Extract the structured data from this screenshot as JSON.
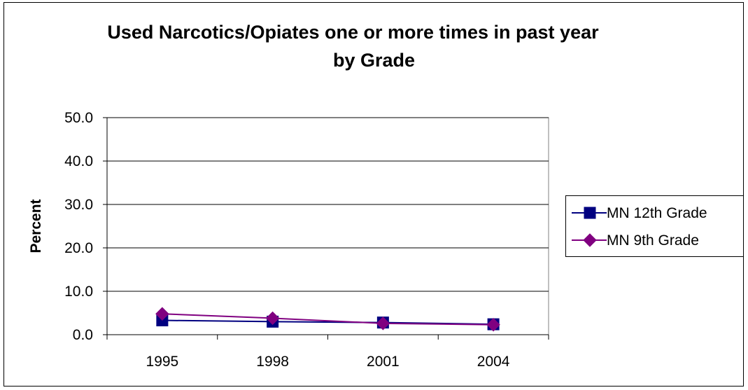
{
  "chart_data": {
    "type": "line",
    "title_line1": "Used Narcotics/Opiates one or more times in past year",
    "title_line2": "by Grade",
    "xlabel": "",
    "ylabel": "Percent",
    "categories": [
      "1995",
      "1998",
      "2001",
      "2004"
    ],
    "ylim": [
      0,
      50
    ],
    "yticks": [
      "0.0",
      "10.0",
      "20.0",
      "30.0",
      "40.0",
      "50.0"
    ],
    "grid": true,
    "legend_placement": "right",
    "series": [
      {
        "name": "MN 12th Grade",
        "values": [
          3.3,
          3.0,
          2.8,
          2.4
        ],
        "color": "#000080",
        "marker": "square"
      },
      {
        "name": "MN 9th Grade",
        "values": [
          4.8,
          3.8,
          2.6,
          2.3
        ],
        "color": "#800080",
        "marker": "diamond"
      }
    ]
  }
}
